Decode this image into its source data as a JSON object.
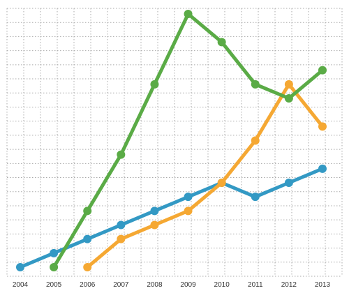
{
  "chart_data": {
    "type": "line",
    "title": "",
    "xlabel": "",
    "ylabel": "",
    "x": [
      "2004",
      "2005",
      "2006",
      "2007",
      "2008",
      "2009",
      "2010",
      "2011",
      "2012",
      "2013"
    ],
    "xlim": [
      2004,
      2013
    ],
    "ylim": [
      -1.5,
      19
    ],
    "grid": true,
    "legend": "none",
    "y_tick_labels_shown": false,
    "series": [
      {
        "color": "#3399c4",
        "x": [
          2004,
          2005,
          2006,
          2007,
          2008,
          2009,
          2010,
          2011,
          2012,
          2013
        ],
        "values": [
          0,
          1,
          2,
          3,
          4,
          5,
          6,
          5,
          6,
          7
        ]
      },
      {
        "color": "#f5a833",
        "x": [
          2006,
          2007,
          2008,
          2009,
          2010,
          2011,
          2012,
          2013
        ],
        "values": [
          0,
          2,
          3,
          4,
          6,
          9,
          13,
          10
        ]
      },
      {
        "color": "#5aab46",
        "x": [
          2005,
          2006,
          2007,
          2008,
          2009,
          2010,
          2011,
          2012,
          2013
        ],
        "values": [
          0,
          4,
          8,
          13,
          18,
          16,
          13,
          12,
          14
        ]
      }
    ]
  }
}
